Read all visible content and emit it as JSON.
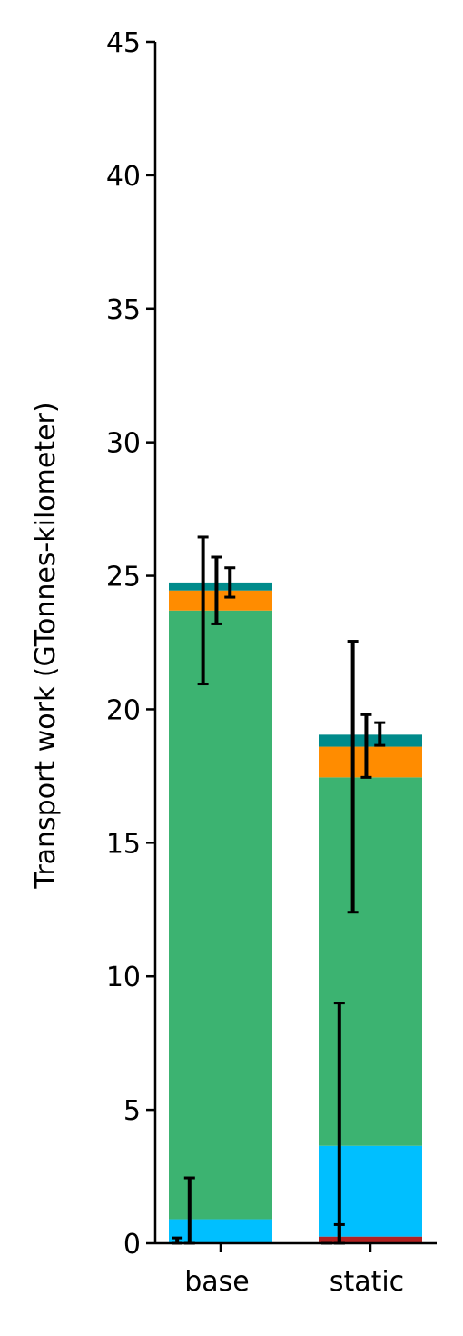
{
  "chart_data": {
    "type": "bar",
    "stacked": true,
    "categories": [
      "base",
      "static"
    ],
    "ylabel": "Transport work (GTonnes-kilometer)",
    "xlabel": "",
    "title": "",
    "ylim": [
      0,
      45
    ],
    "yticks": [
      0,
      5,
      10,
      15,
      20,
      25,
      30,
      35,
      40,
      45
    ],
    "grid": false,
    "series": [
      {
        "color": "#b22222",
        "values": [
          0.0,
          0.25
        ]
      },
      {
        "color": "#00bfff",
        "values": [
          0.9,
          3.4
        ]
      },
      {
        "color": "#3cb371",
        "values": [
          22.8,
          13.8
        ]
      },
      {
        "color": "#ff8c00",
        "values": [
          0.75,
          1.15
        ]
      },
      {
        "color": "#008b8b",
        "values": [
          0.3,
          0.45
        ]
      }
    ],
    "error_bars": [
      {
        "category": "base",
        "offset": -0.42,
        "value": 0.1,
        "low": 0.0,
        "high": 0.2
      },
      {
        "category": "base",
        "offset": -0.3,
        "value": 1.2,
        "low": 0.0,
        "high": 2.45
      },
      {
        "category": "base",
        "offset": -0.17,
        "value": 23.7,
        "low": 20.95,
        "high": 26.45
      },
      {
        "category": "base",
        "offset": -0.04,
        "value": 24.45,
        "low": 23.2,
        "high": 25.7
      },
      {
        "category": "base",
        "offset": 0.09,
        "value": 24.75,
        "low": 24.2,
        "high": 25.3
      },
      {
        "category": "static",
        "offset": -0.42,
        "value": 0.0,
        "low": 0.0,
        "high": 0.0
      },
      {
        "category": "static",
        "offset": -0.3,
        "value": 0.35,
        "low": 0.0,
        "high": 0.7
      },
      {
        "category": "static",
        "offset": -0.3,
        "value": 4.5,
        "low": 0.0,
        "high": 9.0
      },
      {
        "category": "static",
        "offset": -0.17,
        "value": 17.45,
        "low": 12.4,
        "high": 22.55
      },
      {
        "category": "static",
        "offset": -0.04,
        "value": 18.6,
        "low": 17.45,
        "high": 19.8
      },
      {
        "category": "static",
        "offset": 0.09,
        "value": 19.05,
        "low": 18.65,
        "high": 19.5
      }
    ]
  }
}
